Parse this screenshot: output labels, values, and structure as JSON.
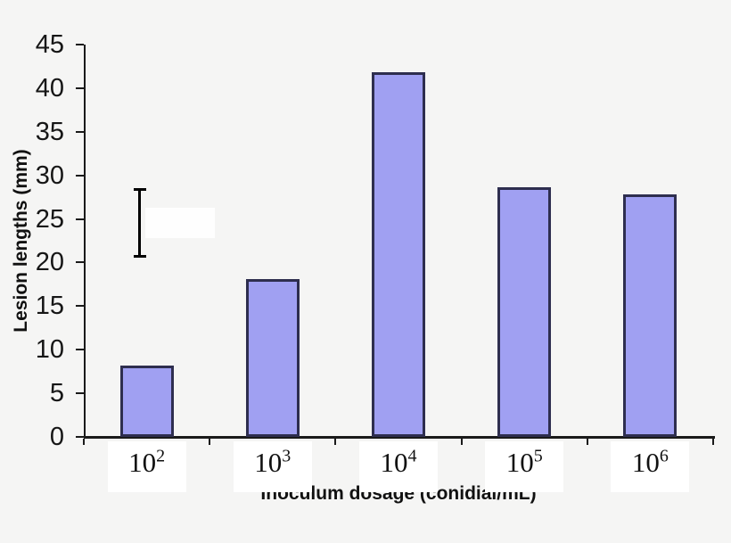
{
  "figure": {
    "background": "#f5f5f4",
    "bar_fill": "#a0a0f2",
    "bar_border": "#2e2e4f",
    "axis_color": "#1a1a1a"
  },
  "chart_data": {
    "type": "bar",
    "title": "",
    "xlabel": "Inoculum dosage (conidial/mL)",
    "ylabel": "Lesion lengths (mm)",
    "categories": [
      "10^2",
      "10^3",
      "10^4",
      "10^5",
      "10^6"
    ],
    "category_base": "10",
    "category_exponents": [
      "2",
      "3",
      "4",
      "5",
      "6"
    ],
    "values": [
      8.2,
      18.1,
      41.8,
      28.6,
      27.8
    ],
    "ylim": [
      0,
      45
    ],
    "yticks": [
      0,
      5,
      10,
      15,
      20,
      25,
      30,
      35,
      40,
      45
    ],
    "grid": false,
    "legend": "none",
    "error_bar": {
      "attached_to": "10^2",
      "low": 20.7,
      "high": 28.4
    }
  }
}
